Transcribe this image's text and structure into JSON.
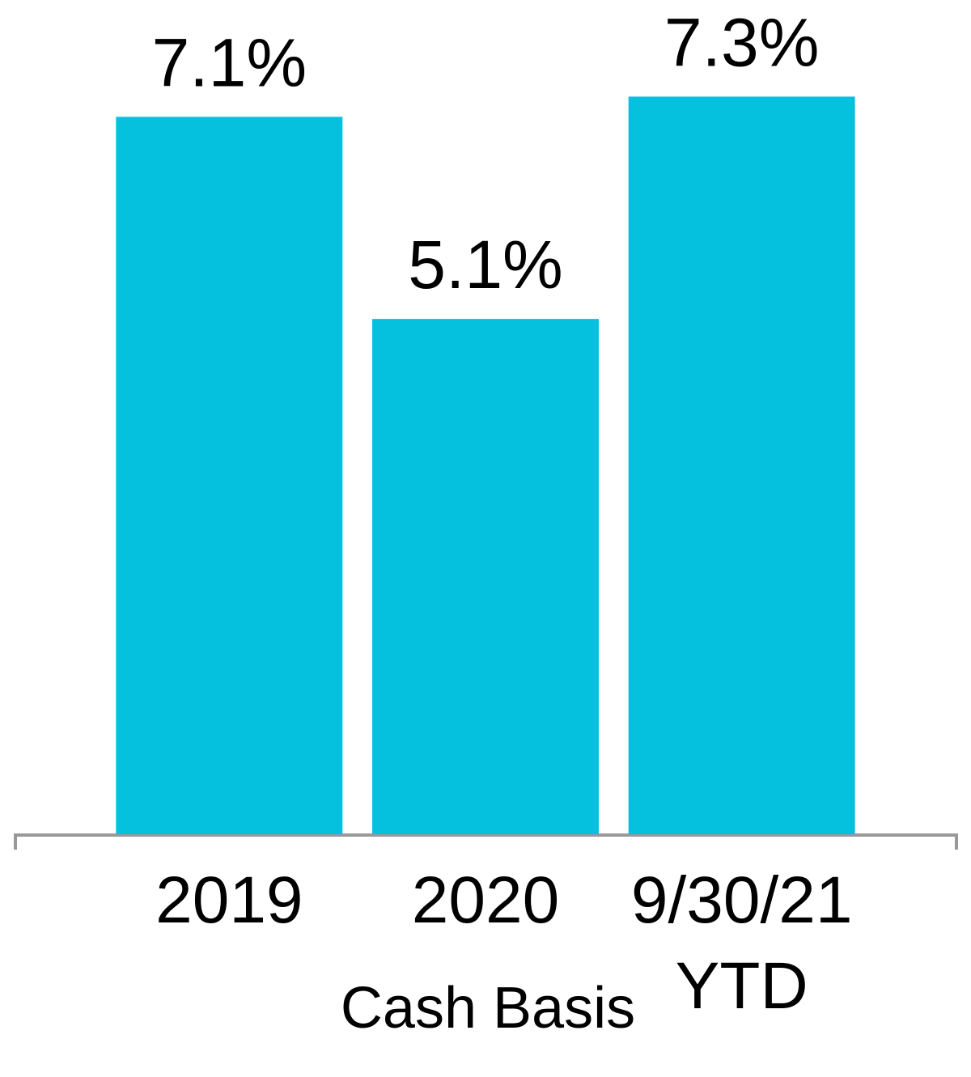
{
  "chart_data": {
    "type": "bar",
    "categories": [
      "2019",
      "2020",
      "9/30/21\nYTD"
    ],
    "values": [
      7.1,
      5.1,
      7.3
    ],
    "value_labels": [
      "7.1%",
      "5.1%",
      "7.3%"
    ],
    "color": "#06c1de",
    "ylim": [
      0,
      8
    ],
    "x_label": "Cash Basis"
  }
}
